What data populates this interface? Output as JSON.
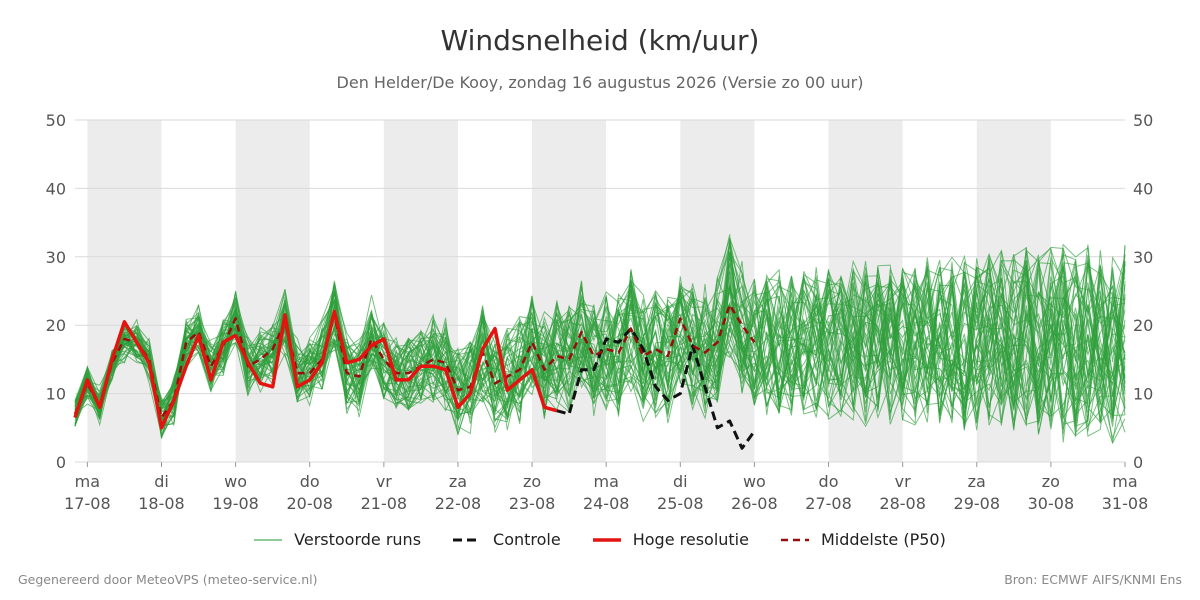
{
  "title": "Windsnelheid (km/uur)",
  "subtitle": "Den Helder/De Kooy, zondag 16 augustus 2026 (Versie zo 00 uur)",
  "legend": {
    "ensemble": "Verstoorde runs",
    "control": "Controle",
    "hires": "Hoge resolutie",
    "median": "Middelste (P50)"
  },
  "footer": {
    "left": "Gegenereerd door MeteoVPS (meteo-service.nl)",
    "right": "Bron: ECMWF AIFS/KNMI Ens"
  },
  "colors": {
    "ensemble": "#2e9e3a",
    "control": "#111111",
    "hires": "#e3140f",
    "median": "#9b0c0c",
    "shade": "#ececec",
    "grid": "#d9d9d9",
    "tick": "#555555"
  },
  "chart_data": {
    "type": "line",
    "x_unit": "days since 2026-08-16 00:00",
    "xlim": [
      0.833,
      15.0
    ],
    "ylim": [
      0,
      50
    ],
    "yticks": [
      0,
      10,
      20,
      30,
      40,
      50
    ],
    "grid": "horizontal",
    "legend_position": "bottom",
    "weekend_shading": true,
    "x_ticks": [
      {
        "x": 1,
        "day": "ma",
        "date": "17-08"
      },
      {
        "x": 2,
        "day": "di",
        "date": "18-08"
      },
      {
        "x": 3,
        "day": "wo",
        "date": "19-08"
      },
      {
        "x": 4,
        "day": "do",
        "date": "20-08"
      },
      {
        "x": 5,
        "day": "vr",
        "date": "21-08"
      },
      {
        "x": 6,
        "day": "za",
        "date": "22-08"
      },
      {
        "x": 7,
        "day": "zo",
        "date": "23-08"
      },
      {
        "x": 8,
        "day": "ma",
        "date": "24-08"
      },
      {
        "x": 9,
        "day": "di",
        "date": "25-08"
      },
      {
        "x": 10,
        "day": "wo",
        "date": "26-08"
      },
      {
        "x": 11,
        "day": "do",
        "date": "27-08"
      },
      {
        "x": 12,
        "day": "vr",
        "date": "28-08"
      },
      {
        "x": 13,
        "day": "za",
        "date": "29-08"
      },
      {
        "x": 14,
        "day": "zo",
        "date": "30-08"
      },
      {
        "x": 15,
        "day": "ma",
        "date": "31-08"
      }
    ],
    "shaded_intervals": [
      [
        1,
        2
      ],
      [
        3,
        4
      ],
      [
        5,
        6
      ],
      [
        7,
        8
      ],
      [
        9,
        10
      ],
      [
        11,
        12
      ],
      [
        13,
        14
      ]
    ],
    "ensemble_members": 50,
    "series": [
      {
        "name": "Hoge resolutie",
        "style": "solid-red",
        "x": [
          0.833,
          1.0,
          1.167,
          1.333,
          1.5,
          1.667,
          1.833,
          2.0,
          2.167,
          2.333,
          2.5,
          2.667,
          2.833,
          3.0,
          3.167,
          3.333,
          3.5,
          3.667,
          3.833,
          4.0,
          4.167,
          4.333,
          4.5,
          4.667,
          4.833,
          5.0,
          5.167,
          5.333,
          5.5,
          5.667,
          5.833,
          6.0,
          6.167,
          6.333,
          6.5,
          6.667,
          6.833,
          7.0,
          7.167,
          7.333,
          7.5,
          7.667,
          7.833,
          8.0,
          8.167,
          8.333,
          8.5,
          8.667,
          8.833,
          9.0,
          9.167,
          9.333,
          9.5,
          9.667,
          9.833,
          10.0
        ],
        "values": [
          6.5,
          12.0,
          8.0,
          15.0,
          20.5,
          17.5,
          14.5,
          5.0,
          9.0,
          14.0,
          18.5,
          12.0,
          17.5,
          18.5,
          14.5,
          11.5,
          11.0,
          21.5,
          11.0,
          12.0,
          14.5,
          22.0,
          14.5,
          15.0,
          17.0,
          18.0,
          12.0,
          12.0,
          14.0,
          14.0,
          13.5,
          8.0,
          10.0,
          16.5,
          19.5,
          10.5,
          12.0,
          13.5,
          8.0,
          7.5,
          null,
          null,
          null,
          null,
          null,
          null,
          null,
          null,
          null,
          null,
          null,
          null,
          null,
          null,
          null,
          null
        ]
      },
      {
        "name": "Controle",
        "style": "dashed-black",
        "x": [
          0.833,
          1.0,
          1.167,
          1.333,
          1.5,
          1.667,
          1.833,
          2.0,
          2.167,
          2.333,
          2.5,
          2.667,
          2.833,
          3.0,
          3.167,
          3.333,
          3.5,
          3.667,
          3.833,
          4.0,
          4.167,
          4.333,
          4.5,
          4.667,
          4.833,
          5.0,
          5.167,
          5.333,
          5.5,
          5.667,
          5.833,
          6.0,
          6.167,
          6.333,
          6.5,
          6.667,
          6.833,
          7.0,
          7.167,
          7.333,
          7.5,
          7.667,
          7.833,
          8.0,
          8.167,
          8.333,
          8.5,
          8.667,
          8.833,
          9.0,
          9.167,
          9.333,
          9.5,
          9.667,
          9.833,
          10.0
        ],
        "values": [
          null,
          null,
          null,
          null,
          null,
          null,
          null,
          null,
          null,
          null,
          null,
          null,
          null,
          null,
          null,
          null,
          null,
          null,
          null,
          null,
          null,
          null,
          null,
          null,
          null,
          null,
          null,
          null,
          null,
          null,
          null,
          null,
          null,
          null,
          null,
          null,
          null,
          null,
          null,
          7.5,
          7.0,
          13.5,
          13.5,
          18.0,
          17.5,
          19.5,
          16.5,
          11.0,
          9.0,
          10.0,
          17.0,
          11.0,
          5.0,
          6.0,
          2.0,
          4.5
        ]
      },
      {
        "name": "Middelste (P50)",
        "style": "dashed-darkred",
        "x": [
          0.833,
          1.0,
          1.167,
          1.333,
          1.5,
          1.667,
          1.833,
          2.0,
          2.167,
          2.333,
          2.5,
          2.667,
          2.833,
          3.0,
          3.167,
          3.333,
          3.5,
          3.667,
          3.833,
          4.0,
          4.167,
          4.333,
          4.5,
          4.667,
          4.833,
          5.0,
          5.167,
          5.333,
          5.5,
          5.667,
          5.833,
          6.0,
          6.167,
          6.333,
          6.5,
          6.667,
          6.833,
          7.0,
          7.167,
          7.333,
          7.5,
          7.667,
          7.833,
          8.0,
          8.167,
          8.333,
          8.5,
          8.667,
          8.833,
          9.0,
          9.167,
          9.333,
          9.5,
          9.667,
          9.833,
          10.0
        ],
        "values": [
          7.0,
          11.5,
          8.0,
          14.5,
          18.0,
          17.5,
          15.0,
          6.5,
          9.0,
          17.5,
          19.0,
          14.0,
          17.0,
          21.0,
          14.0,
          15.0,
          16.5,
          20.5,
          13.0,
          13.0,
          15.0,
          21.5,
          13.0,
          12.5,
          18.0,
          15.0,
          13.0,
          13.0,
          14.0,
          15.0,
          14.5,
          10.5,
          11.0,
          16.0,
          11.5,
          12.5,
          13.5,
          17.5,
          13.5,
          15.5,
          15.0,
          19.0,
          15.5,
          16.5,
          16.0,
          19.5,
          15.5,
          16.5,
          15.5,
          21.0,
          17.0,
          16.0,
          17.5,
          23.0,
          20.0,
          17.5
        ]
      }
    ]
  }
}
